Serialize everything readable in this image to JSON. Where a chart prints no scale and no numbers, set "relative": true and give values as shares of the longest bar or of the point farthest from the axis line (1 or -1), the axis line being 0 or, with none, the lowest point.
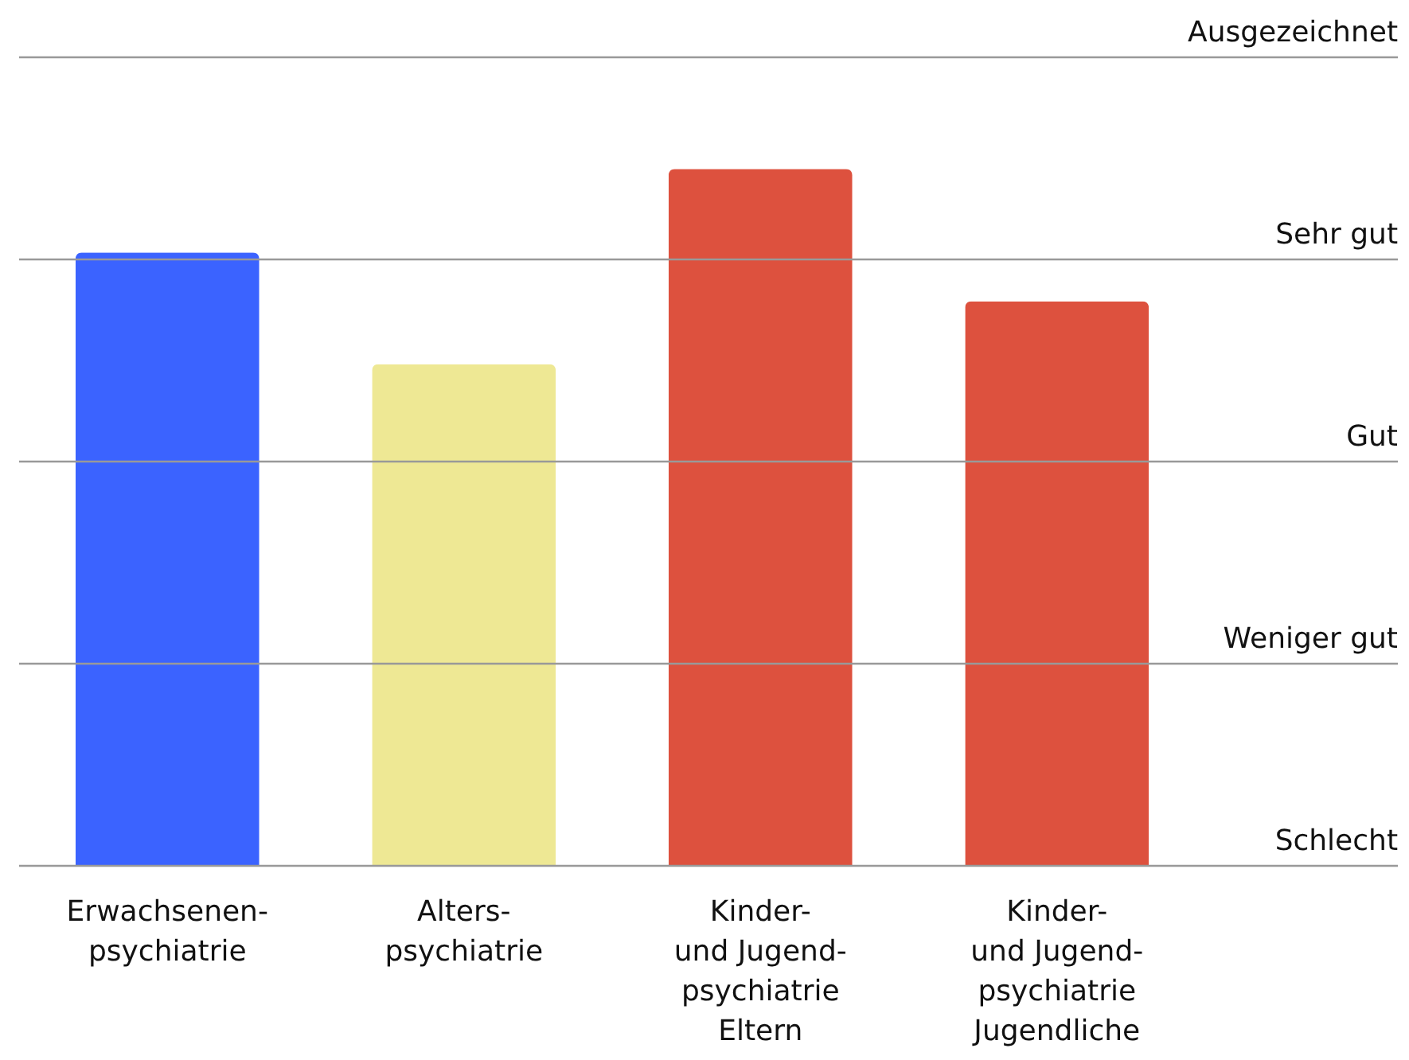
{
  "chart_data": {
    "type": "bar",
    "relative": true,
    "categories": [
      "Erwachsenen-\npsychiatrie",
      "Alters-\npsychiatrie",
      "Kinder-\nund Jugend-\npsychiatrie\nEltern",
      "Kinder-\nund Jugend-\npsychiatrie\nJugendliche"
    ],
    "values": [
      0.88,
      0.72,
      1,
      0.81
    ],
    "colors": [
      "#3b63ff",
      "#eee894",
      "#dd513e",
      "#dd513e"
    ],
    "ref_lines": [
      {
        "axis": "y",
        "value": 0,
        "label": "Schlecht",
        "color": "#999999"
      },
      {
        "axis": "y",
        "value": 0.29,
        "label": "Weniger gut",
        "color": "#999999"
      },
      {
        "axis": "y",
        "value": 0.58,
        "label": "Gut",
        "color": "#999999"
      },
      {
        "axis": "y",
        "value": 0.87,
        "label": "Sehr gut",
        "color": "#999999"
      },
      {
        "axis": "y",
        "value": 1.16,
        "label": "Ausgezeichnet",
        "color": "#999999"
      }
    ]
  }
}
